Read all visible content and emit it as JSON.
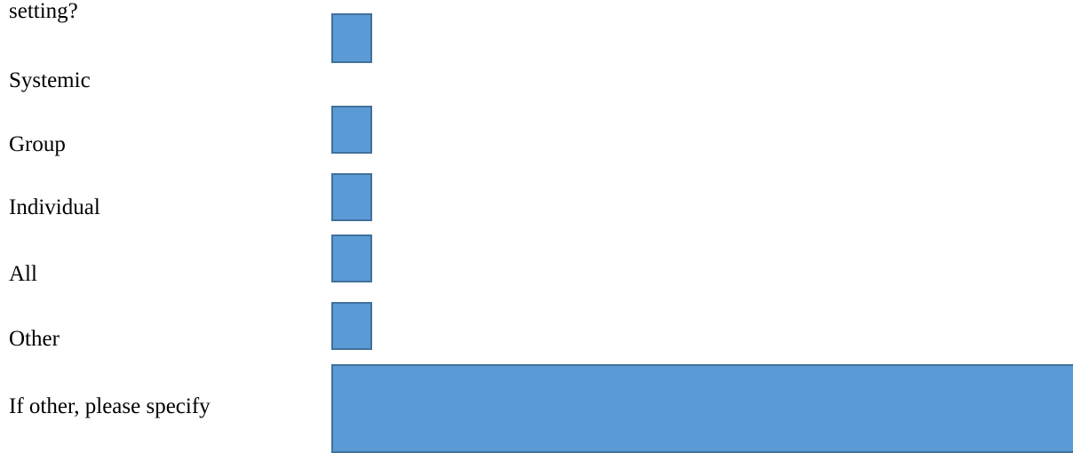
{
  "form": {
    "question_tail": "setting?",
    "options": [
      {
        "label": "Systemic"
      },
      {
        "label": "Group"
      },
      {
        "label": "Individual"
      },
      {
        "label": "All"
      },
      {
        "label": "Other"
      }
    ],
    "other_specify_label": "If other, please specify"
  },
  "colors": {
    "box_fill": "#5b9bd5",
    "box_border": "#41719c"
  }
}
